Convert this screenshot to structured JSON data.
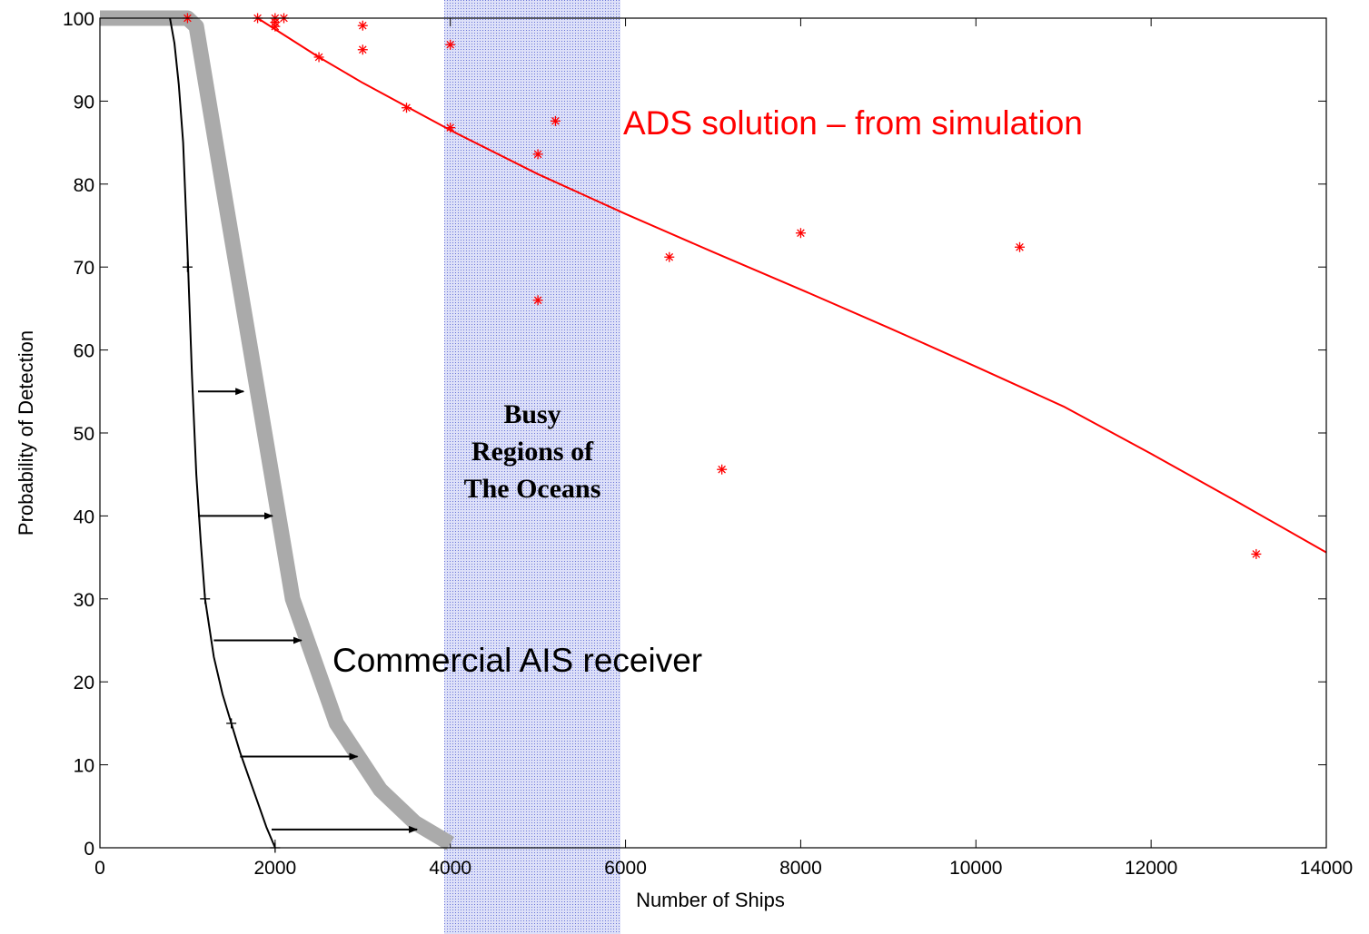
{
  "chart_data": {
    "type": "line",
    "xlabel": "Number of Ships",
    "ylabel": "Probability of Detection",
    "xlim": [
      0,
      14000
    ],
    "ylim": [
      0,
      100
    ],
    "xticks": [
      0,
      2000,
      4000,
      6000,
      8000,
      10000,
      12000,
      14000
    ],
    "yticks": [
      0,
      10,
      20,
      30,
      40,
      50,
      60,
      70,
      80,
      90,
      100
    ],
    "grid": false,
    "shaded_region": {
      "x": [
        4000,
        6000
      ],
      "label_lines": [
        "Busy",
        "Regions of",
        "The Oceans"
      ]
    },
    "annotations": {
      "ads": "ADS  solution – from simulation",
      "ais": "Commercial AIS receiver"
    },
    "series": [
      {
        "kind": "fit-line",
        "color": "#ff0000",
        "x": [
          1800,
          2500,
          3000,
          4000,
          5000,
          6000,
          7000,
          8000,
          9000,
          10000,
          11000,
          12000,
          13000,
          14000
        ],
        "values": [
          100,
          95.3,
          92.2,
          86.5,
          81.2,
          76.4,
          71.8,
          67.3,
          62.7,
          58.0,
          53.2,
          47.5,
          41.6,
          35.6
        ]
      },
      {
        "kind": "points",
        "marker": "star",
        "color": "#ff0000",
        "x": [
          1000,
          1800,
          2000,
          2000,
          2100,
          2000,
          2500,
          3000,
          3000,
          3500,
          4000,
          4000,
          5000,
          5000,
          5200,
          6500,
          7100,
          8000,
          10500,
          13200
        ],
        "values": [
          100,
          100,
          100,
          99,
          100,
          99.5,
          95.3,
          99.1,
          96.2,
          89.2,
          96.8,
          86.8,
          83.6,
          66,
          87.6,
          71.2,
          45.6,
          74.1,
          72.4,
          35.4
        ]
      },
      {
        "kind": "line",
        "color": "#000000",
        "x": [
          800,
          850,
          900,
          950,
          1000,
          1050,
          1100,
          1150,
          1200,
          1300,
          1400,
          1500,
          1600,
          1700,
          1800,
          1900,
          2000
        ],
        "values": [
          100,
          97,
          92,
          85,
          72,
          57,
          45,
          37,
          30,
          23,
          18.5,
          15,
          11.5,
          8.5,
          5.5,
          2.5,
          0
        ]
      },
      {
        "kind": "points",
        "marker": "plus",
        "color": "#000000",
        "x": [
          1000,
          1200,
          1500,
          2000
        ],
        "values": [
          70,
          30,
          15,
          0
        ]
      },
      {
        "kind": "thick-line",
        "color": "#aaaaaa",
        "x": [
          0,
          900,
          1000,
          1100,
          1400,
          1800,
          2200,
          2700,
          3200,
          3600,
          4000
        ],
        "values": [
          100,
          100,
          100,
          99,
          80,
          55,
          30,
          15,
          7,
          3,
          0.5
        ]
      }
    ],
    "arrows": [
      {
        "from": [
          1120,
          55
        ],
        "to": [
          1640,
          55
        ]
      },
      {
        "from": [
          1120,
          40
        ],
        "to": [
          1970,
          40
        ]
      },
      {
        "from": [
          1300,
          25
        ],
        "to": [
          2300,
          25
        ]
      },
      {
        "from": [
          1600,
          11
        ],
        "to": [
          2940,
          11
        ]
      },
      {
        "from": [
          1960,
          2.2
        ],
        "to": [
          3620,
          2.2
        ]
      }
    ]
  }
}
